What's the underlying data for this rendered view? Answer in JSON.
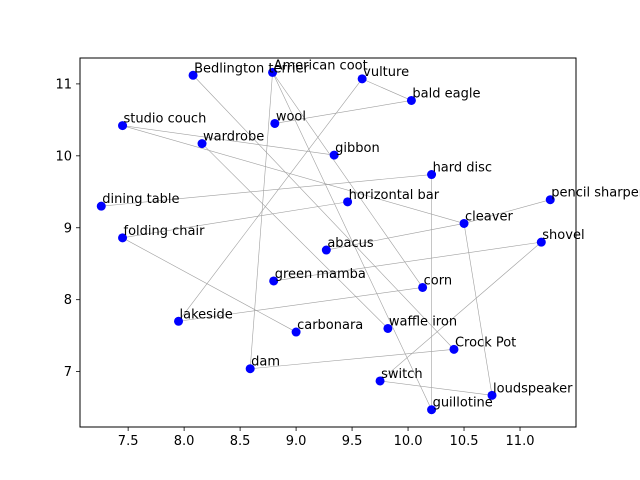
{
  "chart_data": {
    "type": "scatter",
    "title": "",
    "xlabel": "",
    "ylabel": "",
    "xlim": [
      7.07,
      11.5
    ],
    "ylim": [
      6.23,
      11.36
    ],
    "xticks": [
      "7.5",
      "8.0",
      "8.5",
      "9.0",
      "9.5",
      "10.0",
      "10.5",
      "11.0"
    ],
    "yticks": [
      "7",
      "8",
      "9",
      "10",
      "11"
    ],
    "grid": false,
    "point_color": "#0000ff",
    "edge_color": "#a0a0a0",
    "points": [
      {
        "label": "Bedlington terrier",
        "x": 8.08,
        "y": 11.12
      },
      {
        "label": "American coot",
        "x": 8.79,
        "y": 11.16
      },
      {
        "label": "vulture",
        "x": 9.59,
        "y": 11.07
      },
      {
        "label": "bald eagle",
        "x": 10.03,
        "y": 10.77
      },
      {
        "label": "studio couch",
        "x": 7.45,
        "y": 10.42
      },
      {
        "label": "wool",
        "x": 8.81,
        "y": 10.45
      },
      {
        "label": "wardrobe",
        "x": 8.16,
        "y": 10.17
      },
      {
        "label": "gibbon",
        "x": 9.34,
        "y": 10.01
      },
      {
        "label": "hard disc",
        "x": 10.21,
        "y": 9.74
      },
      {
        "label": "dining table",
        "x": 7.26,
        "y": 9.3
      },
      {
        "label": "horizontal bar",
        "x": 9.46,
        "y": 9.36
      },
      {
        "label": "pencil sharpener",
        "x": 11.27,
        "y": 9.39
      },
      {
        "label": "folding chair",
        "x": 7.45,
        "y": 8.86
      },
      {
        "label": "cleaver",
        "x": 10.5,
        "y": 9.06
      },
      {
        "label": "abacus",
        "x": 9.27,
        "y": 8.69
      },
      {
        "label": "shovel",
        "x": 11.19,
        "y": 8.8
      },
      {
        "label": "green mamba",
        "x": 8.8,
        "y": 8.26
      },
      {
        "label": "corn",
        "x": 10.13,
        "y": 8.17
      },
      {
        "label": "lakeside",
        "x": 7.95,
        "y": 7.7
      },
      {
        "label": "carbonara",
        "x": 9.0,
        "y": 7.55
      },
      {
        "label": "waffle iron",
        "x": 9.82,
        "y": 7.6
      },
      {
        "label": "Crock Pot",
        "x": 10.41,
        "y": 7.31
      },
      {
        "label": "dam",
        "x": 8.59,
        "y": 7.04
      },
      {
        "label": "switch",
        "x": 9.75,
        "y": 6.87
      },
      {
        "label": "loudspeaker",
        "x": 10.75,
        "y": 6.67
      },
      {
        "label": "guillotine",
        "x": 10.21,
        "y": 6.47
      }
    ],
    "edges": [
      [
        "Bedlington terrier",
        "Crock Pot"
      ],
      [
        "American coot",
        "corn"
      ],
      [
        "American coot",
        "guillotine"
      ],
      [
        "American coot",
        "dam"
      ],
      [
        "vulture",
        "bald eagle"
      ],
      [
        "vulture",
        "lakeside"
      ],
      [
        "bald eagle",
        "wool"
      ],
      [
        "studio couch",
        "gibbon"
      ],
      [
        "studio couch",
        "cleaver"
      ],
      [
        "wardrobe",
        "waffle iron"
      ],
      [
        "hard disc",
        "dining table"
      ],
      [
        "hard disc",
        "guillotine"
      ],
      [
        "horizontal bar",
        "folding chair"
      ],
      [
        "pencil sharpener",
        "cleaver"
      ],
      [
        "folding chair",
        "carbonara"
      ],
      [
        "cleaver",
        "abacus"
      ],
      [
        "cleaver",
        "loudspeaker"
      ],
      [
        "shovel",
        "green mamba"
      ],
      [
        "shovel",
        "switch"
      ],
      [
        "corn",
        "lakeside"
      ],
      [
        "dam",
        "Crock Pot"
      ],
      [
        "switch",
        "loudspeaker"
      ]
    ]
  }
}
